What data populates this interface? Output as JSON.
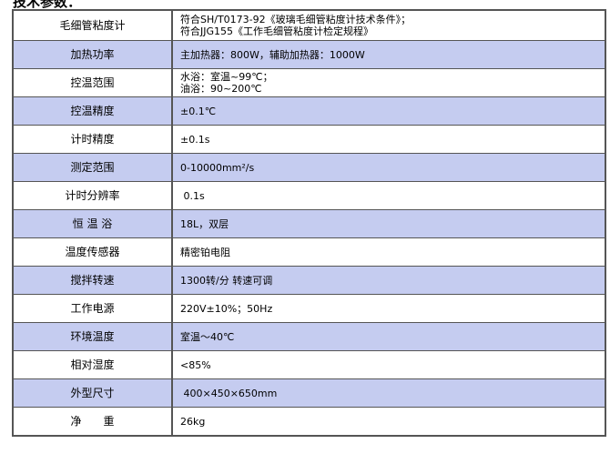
{
  "title": "技术参数：",
  "rows": [
    {
      "label": "毛细管粘度计",
      "value": [
        "符合SH/T0173-92《玻璃毛细管粘度计技术条件》；",
        "符合JJG155《工作毛细管粘度计检定规程》"
      ]
    },
    {
      "label": "加热功率",
      "value": [
        "主加热器：800W，辅助加热器：1000W"
      ]
    },
    {
      "label": "控温范围",
      "value": [
        "水浴：室温~99℃；",
        "油浴：90~200℃"
      ]
    },
    {
      "label": "控温精度",
      "value": [
        "±0.1℃"
      ]
    },
    {
      "label": "计时精度",
      "value": [
        "±0.1s"
      ]
    },
    {
      "label": "测定范围",
      "value": [
        "0-10000mm²/s"
      ]
    },
    {
      "label": "计时分辨率",
      "value": [
        " 0.1s"
      ]
    },
    {
      "label": "恒 温 浴",
      "value": [
        "18L，双层"
      ]
    },
    {
      "label": "温度传感器",
      "value": [
        "精密铂电阻"
      ]
    },
    {
      "label": "搅拌转速",
      "value": [
        "1300转/分 转速可调"
      ]
    },
    {
      "label": "工作电源",
      "value": [
        "220V±10%；50Hz"
      ]
    },
    {
      "label": "环境温度",
      "value": [
        "室温～40℃"
      ]
    },
    {
      "label": "相对湿度",
      "value": [
        "<85%"
      ]
    },
    {
      "label": "外型尺寸",
      "value": [
        " 400×450×650mm"
      ]
    },
    {
      "label": "净　　重",
      "value": [
        "26kg"
      ]
    }
  ],
  "colors": {
    "alt_row": "#c5ccf0",
    "border": "#555555"
  }
}
